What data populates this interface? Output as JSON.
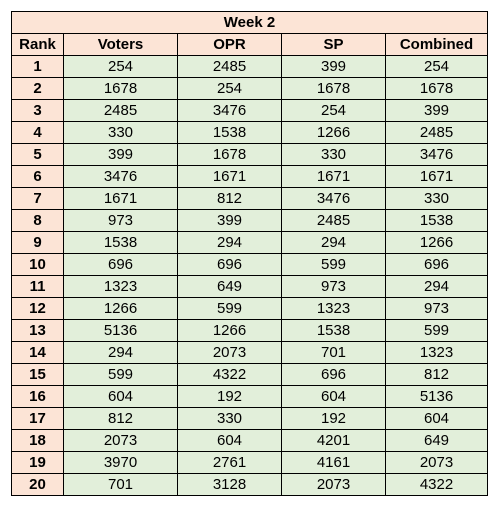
{
  "table": {
    "title": "Week 2",
    "headers": [
      "Rank",
      "Voters",
      "OPR",
      "SP",
      "Combined"
    ],
    "rows": [
      [
        "1",
        "254",
        "2485",
        "399",
        "254"
      ],
      [
        "2",
        "1678",
        "254",
        "1678",
        "1678"
      ],
      [
        "3",
        "2485",
        "3476",
        "254",
        "399"
      ],
      [
        "4",
        "330",
        "1538",
        "1266",
        "2485"
      ],
      [
        "5",
        "399",
        "1678",
        "330",
        "3476"
      ],
      [
        "6",
        "3476",
        "1671",
        "1671",
        "1671"
      ],
      [
        "7",
        "1671",
        "812",
        "3476",
        "330"
      ],
      [
        "8",
        "973",
        "399",
        "2485",
        "1538"
      ],
      [
        "9",
        "1538",
        "294",
        "294",
        "1266"
      ],
      [
        "10",
        "696",
        "696",
        "599",
        "696"
      ],
      [
        "11",
        "1323",
        "649",
        "973",
        "294"
      ],
      [
        "12",
        "1266",
        "599",
        "1323",
        "973"
      ],
      [
        "13",
        "5136",
        "1266",
        "1538",
        "599"
      ],
      [
        "14",
        "294",
        "2073",
        "701",
        "1323"
      ],
      [
        "15",
        "599",
        "4322",
        "696",
        "812"
      ],
      [
        "16",
        "604",
        "192",
        "604",
        "5136"
      ],
      [
        "17",
        "812",
        "330",
        "192",
        "604"
      ],
      [
        "18",
        "2073",
        "604",
        "4201",
        "649"
      ],
      [
        "19",
        "3970",
        "2761",
        "4161",
        "2073"
      ],
      [
        "20",
        "701",
        "3128",
        "2073",
        "4322"
      ]
    ]
  },
  "colors": {
    "header_fill": "#fce4d6",
    "value_fill": "#e2efda",
    "border": "#000000"
  }
}
